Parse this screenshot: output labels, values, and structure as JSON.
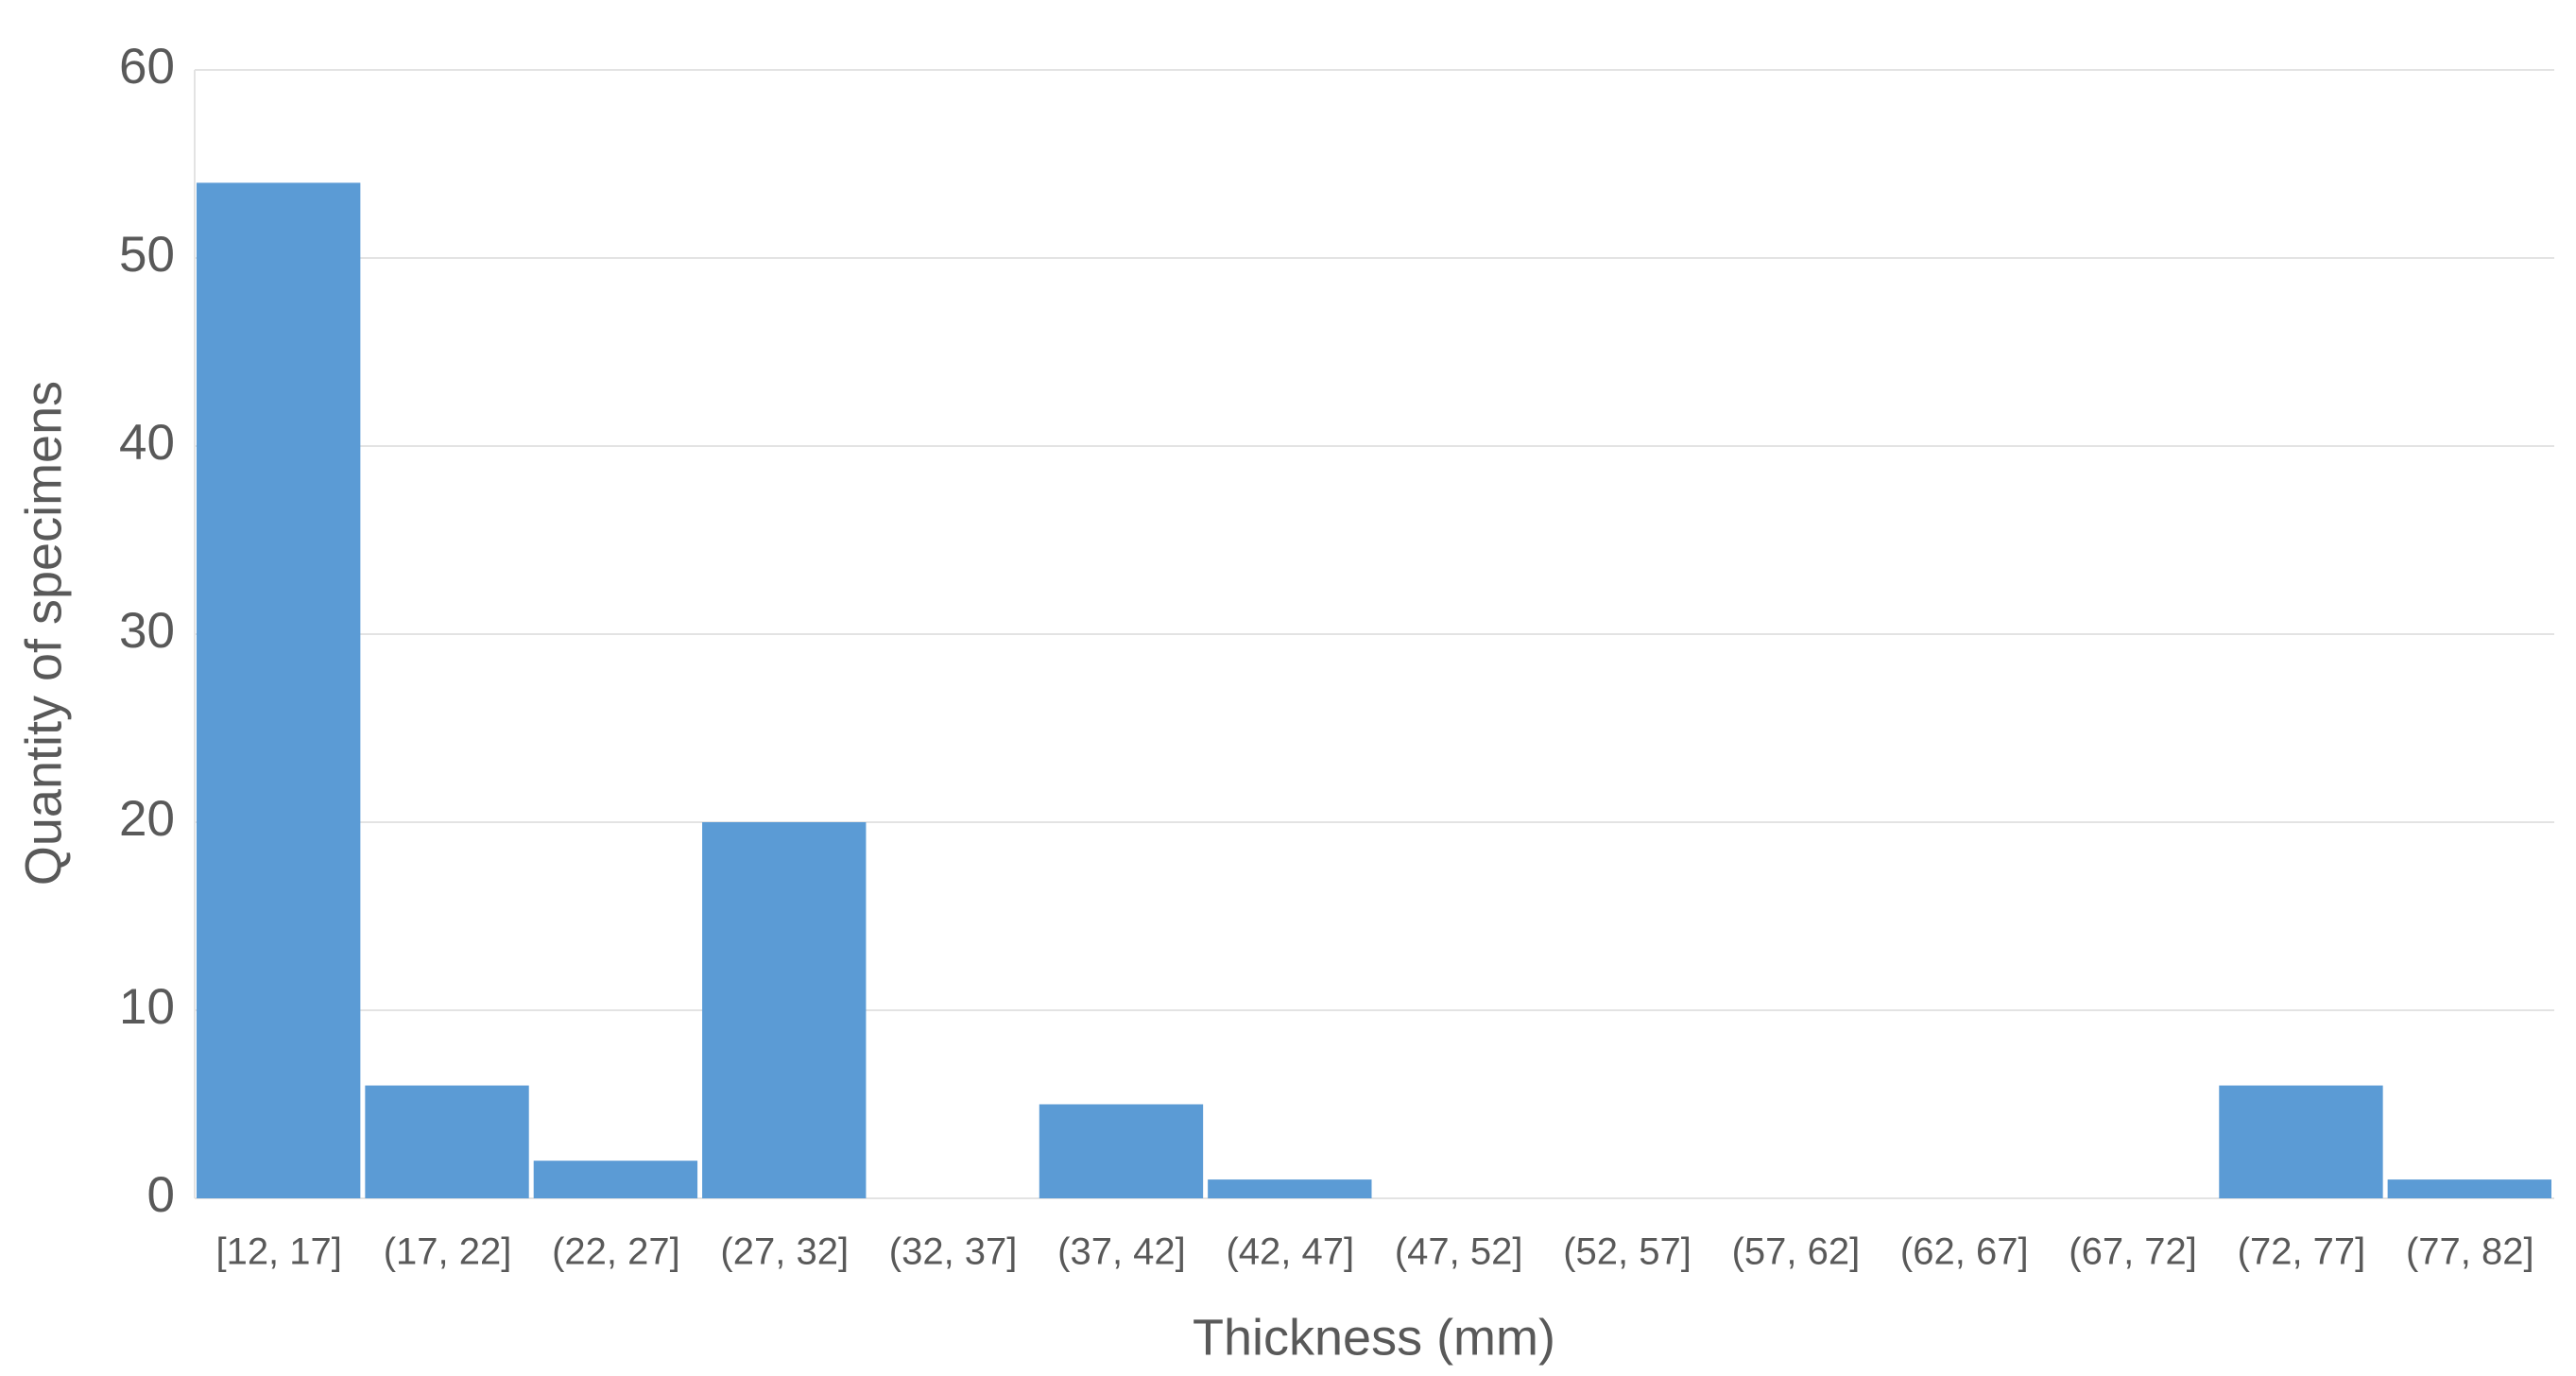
{
  "chart_data": {
    "type": "bar",
    "x_label": "Thickness (mm)",
    "y_label": "Quantity of specimens",
    "categories": [
      "[12, 17]",
      "(17, 22]",
      "(22, 27]",
      "(27, 32]",
      "(32, 37]",
      "(37, 42]",
      "(42, 47]",
      "(47, 52]",
      "(52, 57]",
      "(57, 62]",
      "(62, 67]",
      "(67, 72]",
      "(72, 77]",
      "(77, 82]"
    ],
    "values": [
      54,
      6,
      2,
      20,
      0,
      5,
      1,
      0,
      0,
      0,
      0,
      0,
      6,
      1
    ],
    "color": "#5b9bd5",
    "ylim": [
      0,
      60
    ],
    "yticks": [
      0,
      10,
      20,
      30,
      40,
      50,
      60
    ],
    "grid": true
  }
}
